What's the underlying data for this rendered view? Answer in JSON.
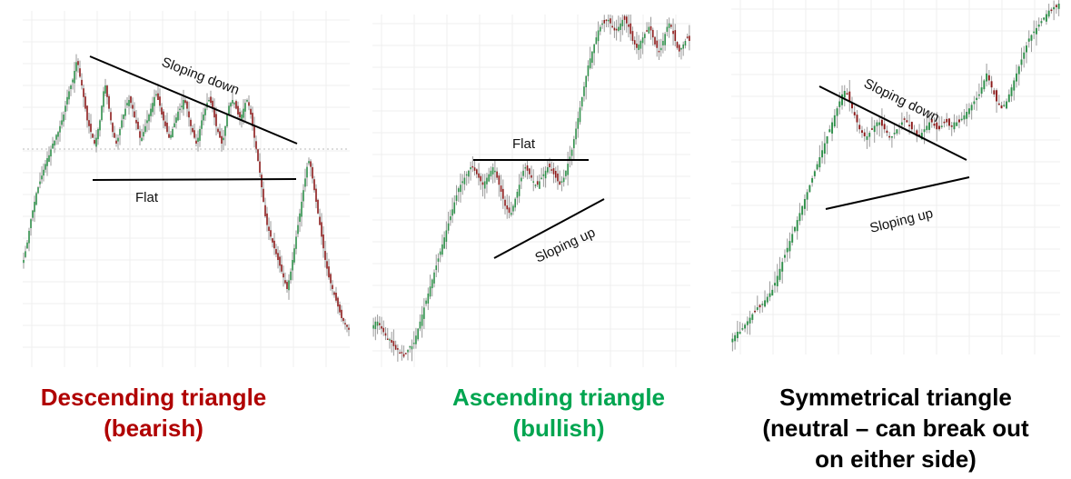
{
  "colors": {
    "up": "#2f8f4a",
    "down": "#8b1a1a",
    "wick": "#9a9a9a",
    "bearish": "#b00000",
    "bullish": "#00a550",
    "neutral": "#000000",
    "trendline": "#000000",
    "grid": "#efefef"
  },
  "chart_data": [
    {
      "type": "candlestick",
      "pattern": "descending triangle",
      "annotations": {
        "upper_line": "Sloping down",
        "lower_line": "Flat"
      },
      "caption": [
        "Descending triangle",
        "(bearish)"
      ],
      "ylim": [
        0,
        100
      ],
      "series": [
        {
          "values": [
            30,
            33,
            36,
            40,
            44,
            47,
            50,
            53,
            55,
            57,
            59,
            61,
            63,
            65,
            66,
            68,
            70,
            71,
            73,
            74,
            76,
            78,
            80,
            83,
            86,
            88,
            90,
            92,
            95,
            98,
            97,
            93,
            90,
            86,
            82,
            78,
            76,
            74,
            72,
            70,
            72,
            75,
            78,
            83,
            88,
            90,
            86,
            82,
            78,
            74,
            72,
            70,
            72,
            75,
            78,
            80,
            82,
            84,
            85,
            84,
            82,
            79,
            77,
            75,
            72,
            72,
            74,
            76,
            78,
            80,
            82,
            84,
            86,
            87,
            85,
            83,
            80,
            78,
            76,
            74,
            72,
            73,
            75,
            77,
            79,
            81,
            82,
            83,
            85,
            84,
            82,
            79,
            76,
            74,
            72,
            70,
            72,
            75,
            78,
            80,
            82,
            84,
            85,
            84,
            82,
            79,
            76,
            74,
            72,
            70,
            72,
            76,
            80,
            83,
            84,
            85,
            84,
            82,
            80,
            79,
            80,
            82,
            84,
            85,
            83,
            80,
            76,
            72,
            68,
            64,
            60,
            55,
            50,
            45,
            42,
            40,
            38,
            36,
            34,
            32,
            30,
            28,
            26,
            24,
            22,
            20,
            23,
            26,
            30,
            34,
            38,
            42,
            46,
            50,
            54,
            58,
            62,
            64,
            62,
            58,
            54,
            50,
            46,
            42,
            38,
            34,
            30,
            27,
            24,
            22,
            20,
            18,
            16,
            14,
            12,
            10,
            9,
            8,
            7,
            6
          ]
        }
      ]
    },
    {
      "type": "candlestick",
      "pattern": "ascending triangle",
      "annotations": {
        "upper_line": "Flat",
        "lower_line": "Sloping up"
      },
      "caption": [
        "Ascending triangle",
        "(bullish)"
      ],
      "ylim": [
        0,
        100
      ],
      "series": [
        {
          "values": [
            12,
            13,
            13,
            12,
            11,
            10,
            9,
            8,
            8,
            7,
            6,
            5,
            5,
            4,
            4,
            3,
            4,
            5,
            6,
            6,
            7,
            9,
            11,
            13,
            15,
            17,
            19,
            21,
            23,
            25,
            27,
            29,
            31,
            33,
            35,
            37,
            39,
            41,
            43,
            45,
            47,
            49,
            51,
            52,
            53,
            54,
            55,
            56,
            57,
            57,
            56,
            55,
            54,
            53,
            52,
            53,
            54,
            55,
            56,
            57,
            56,
            54,
            52,
            50,
            48,
            46,
            45,
            44,
            44,
            46,
            48,
            50,
            52,
            54,
            56,
            57,
            56,
            55,
            54,
            53,
            52,
            52,
            53,
            54,
            55,
            56,
            57,
            57,
            56,
            55,
            54,
            53,
            52,
            53,
            54,
            56,
            58,
            60,
            62,
            65,
            68,
            71,
            74,
            77,
            80,
            83,
            86,
            88,
            90,
            92,
            94,
            96,
            97,
            98,
            98,
            99,
            99,
            98,
            97,
            96,
            96,
            97,
            98,
            99,
            99,
            98,
            97,
            95,
            93,
            92,
            91,
            92,
            93,
            94,
            95,
            96,
            97,
            96,
            94,
            92,
            91,
            90,
            91,
            93,
            95,
            97,
            98,
            97,
            95,
            93,
            91,
            90,
            91,
            92,
            93,
            94,
            93
          ]
        }
      ]
    },
    {
      "type": "candlestick",
      "pattern": "symmetrical triangle",
      "annotations": {
        "upper_line": "Sloping down",
        "lower_line": "Sloping up"
      },
      "caption": [
        "Symmetrical triangle",
        "(neutral – can break out",
        "on either side)"
      ],
      "ylim": [
        0,
        100
      ],
      "series": [
        {
          "values": [
            4,
            5,
            6,
            6,
            7,
            8,
            9,
            10,
            11,
            12,
            13,
            13,
            14,
            15,
            16,
            17,
            18,
            20,
            22,
            24,
            26,
            28,
            30,
            32,
            34,
            36,
            38,
            40,
            42,
            44,
            46,
            48,
            50,
            52,
            54,
            56,
            58,
            60,
            62,
            64,
            66,
            68,
            70,
            72,
            74,
            75,
            74,
            72,
            70,
            68,
            66,
            64,
            63,
            62,
            62,
            63,
            64,
            65,
            66,
            66,
            65,
            64,
            63,
            62,
            62,
            63,
            64,
            65,
            66,
            67,
            66,
            65,
            64,
            63,
            62,
            62,
            63,
            64,
            65,
            66,
            66,
            65,
            64,
            64,
            65,
            66,
            66,
            65,
            65,
            66,
            66,
            66,
            67,
            68,
            69,
            70,
            71,
            72,
            73,
            74,
            76,
            78,
            80,
            78,
            76,
            74,
            72,
            71,
            70,
            71,
            72,
            74,
            76,
            78,
            80,
            82,
            84,
            86,
            88,
            90,
            91,
            92,
            93,
            94,
            95,
            96,
            97,
            98,
            98,
            99,
            99,
            100
          ]
        }
      ]
    }
  ]
}
